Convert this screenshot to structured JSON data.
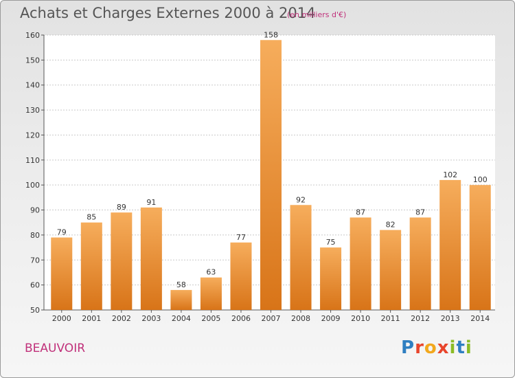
{
  "header": {
    "title": "Achats et Charges Externes 2000 à 2014",
    "subtitle": "(en milliers d'€)"
  },
  "footer": {
    "commune": "BEAUVOIR",
    "logo": "Proxiti",
    "logo_colors": [
      "#2f7fc1",
      "#e8452c",
      "#f2a81d",
      "#e8452c",
      "#8bbb25",
      "#2f7fc1",
      "#8bbb25"
    ]
  },
  "colors": {
    "bar_light": "#f6ad5c",
    "bar_dark": "#d87418",
    "accent": "#c0307a"
  },
  "chart_data": {
    "type": "bar",
    "title": "Achats et Charges Externes 2000 à 2014",
    "subtitle": "(en milliers d'€)",
    "categories": [
      "2000",
      "2001",
      "2002",
      "2003",
      "2004",
      "2005",
      "2006",
      "2007",
      "2008",
      "2009",
      "2010",
      "2011",
      "2012",
      "2013",
      "2014"
    ],
    "values": [
      79,
      85,
      89,
      91,
      58,
      63,
      77,
      158,
      92,
      75,
      87,
      82,
      87,
      102,
      100
    ],
    "ylim": [
      50,
      160
    ],
    "yticks": [
      50,
      60,
      70,
      80,
      90,
      100,
      110,
      120,
      130,
      140,
      150,
      160
    ],
    "grid": true,
    "data_labels": true
  }
}
